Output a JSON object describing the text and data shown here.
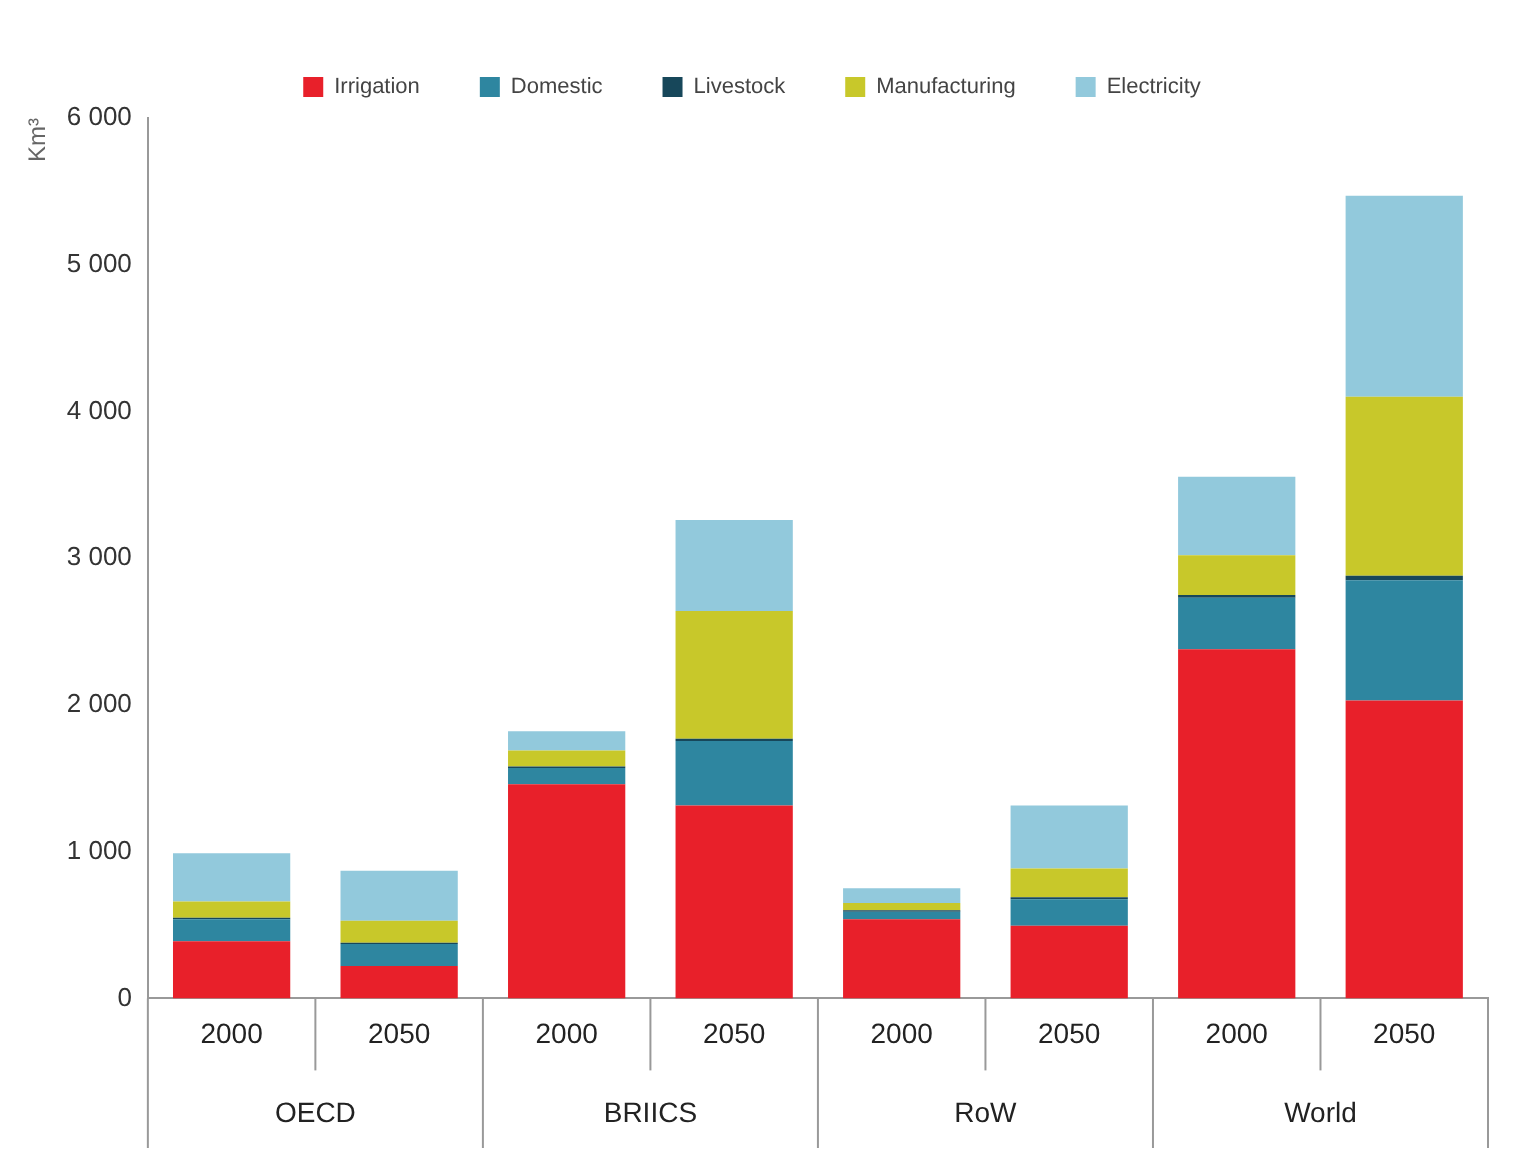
{
  "chart_data": {
    "type": "bar",
    "stacked": true,
    "ylabel": "Km³",
    "categories": [
      "2000",
      "2050",
      "2000",
      "2050",
      "2000",
      "2050",
      "2000",
      "2050"
    ],
    "annotations": [
      "OECD",
      "BRIICS",
      "RoW",
      "World"
    ],
    "series": [
      {
        "name": "Irrigation",
        "color": "#e8202a",
        "values": [
          390,
          220,
          1460,
          1315,
          540,
          495,
          2380,
          2030
        ]
      },
      {
        "name": "Domestic",
        "color": "#2e86a0",
        "values": [
          150,
          150,
          110,
          440,
          50,
          180,
          350,
          820
        ]
      },
      {
        "name": "Livestock",
        "color": "#17475a",
        "values": [
          10,
          10,
          10,
          15,
          10,
          15,
          20,
          30
        ]
      },
      {
        "name": "Manufacturing",
        "color": "#c8c82a",
        "values": [
          110,
          150,
          110,
          870,
          50,
          195,
          270,
          1220
        ]
      },
      {
        "name": "Electricity",
        "color": "#92c9dc",
        "values": [
          330,
          340,
          130,
          620,
          100,
          430,
          535,
          1370
        ]
      }
    ],
    "ylim": [
      0,
      6000
    ],
    "yticks": [
      0,
      {
        "value": 1000,
        "label": "1 000"
      },
      {
        "value": 2000,
        "label": "2 000"
      },
      {
        "value": 3000,
        "label": "3 000"
      },
      {
        "value": 4000,
        "label": "4 000"
      },
      {
        "value": 5000,
        "label": "5 000"
      },
      {
        "value": 6000,
        "label": "6 000"
      }
    ],
    "grid": false,
    "legend": "top"
  }
}
